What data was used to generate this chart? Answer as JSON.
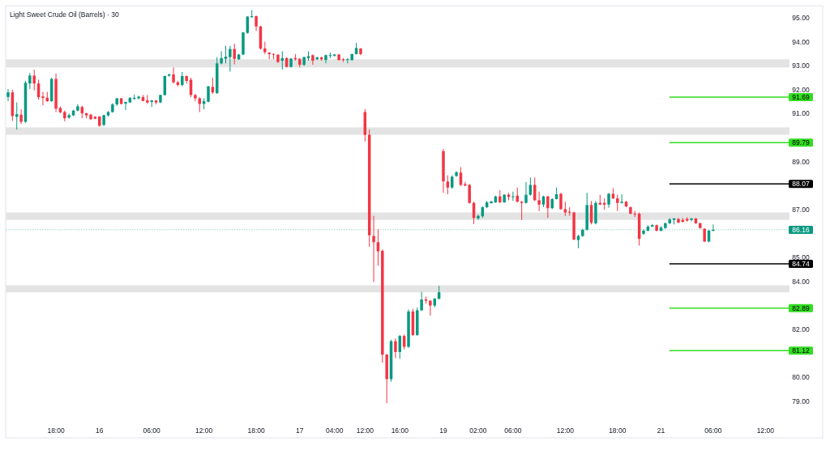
{
  "chart_data": {
    "type": "candlestick",
    "title": "Light Sweet Crude Oil (Barrels) · 30",
    "categories": [
      null,
      null,
      null,
      null,
      null,
      null,
      null,
      null,
      null,
      null,
      null,
      "18:00",
      null,
      null,
      null,
      null,
      null,
      null,
      null,
      null,
      null,
      "16",
      null,
      null,
      null,
      null,
      null,
      null,
      null,
      null,
      null,
      null,
      null,
      "06:00",
      null,
      null,
      null,
      null,
      null,
      null,
      null,
      null,
      null,
      null,
      null,
      "12:00",
      null,
      null,
      null,
      null,
      null,
      null,
      null,
      null,
      null,
      null,
      null,
      "18:00",
      null,
      null,
      null,
      null,
      null,
      null,
      null,
      null,
      null,
      "17",
      null,
      null,
      null,
      null,
      null,
      null,
      null,
      "04:00",
      null,
      null,
      null,
      null,
      null,
      null,
      "12:00",
      null,
      null,
      null,
      null,
      null,
      null,
      null,
      "16:00",
      null,
      null,
      null,
      null,
      null,
      null,
      null,
      null,
      null,
      "19",
      null,
      null,
      null,
      null,
      null,
      null,
      null,
      "02:00",
      null,
      null,
      null,
      null,
      null,
      null,
      null,
      "06:00",
      null,
      null,
      null,
      null,
      null,
      null,
      null,
      null,
      null,
      null,
      null,
      "12:00",
      null,
      null,
      null,
      null,
      null,
      null,
      null,
      null,
      null,
      null,
      null,
      "18:00",
      null,
      null,
      null,
      null,
      null,
      null,
      null,
      null,
      null,
      "21",
      null,
      null,
      null,
      null,
      null,
      null,
      null,
      null,
      null,
      null,
      null,
      "06:00",
      null,
      null,
      null,
      null,
      null,
      null,
      null,
      null,
      null,
      null,
      null,
      "12:00",
      null,
      null,
      null,
      null,
      null
    ],
    "ohlc": [
      [
        91.7,
        92.03,
        91.52,
        91.89
      ],
      [
        91.89,
        92.0,
        90.7,
        90.9
      ],
      [
        90.87,
        91.47,
        90.34,
        90.98
      ],
      [
        90.96,
        91.18,
        90.57,
        90.66
      ],
      [
        90.66,
        92.37,
        90.62,
        92.29
      ],
      [
        92.26,
        92.7,
        92.03,
        92.59
      ],
      [
        92.59,
        92.84,
        91.97,
        92.26
      ],
      [
        92.26,
        92.42,
        91.58,
        91.69
      ],
      [
        91.72,
        91.91,
        91.35,
        91.66
      ],
      [
        91.67,
        91.91,
        91.5,
        91.52
      ],
      [
        91.52,
        92.5,
        91.5,
        92.45
      ],
      [
        92.45,
        92.67,
        91.07,
        91.21
      ],
      [
        91.24,
        91.3,
        91.02,
        91.06
      ],
      [
        91.07,
        91.13,
        90.68,
        90.81
      ],
      [
        90.84,
        91.0,
        90.79,
        90.94
      ],
      [
        90.93,
        91.16,
        90.9,
        91.13
      ],
      [
        91.13,
        91.39,
        91.1,
        91.31
      ],
      [
        91.28,
        91.33,
        90.81,
        91.02
      ],
      [
        91.02,
        91.04,
        90.81,
        90.93
      ],
      [
        90.96,
        91.0,
        90.74,
        90.77
      ],
      [
        90.87,
        90.9,
        90.77,
        90.79
      ],
      [
        90.88,
        90.9,
        90.45,
        90.5
      ],
      [
        90.53,
        90.96,
        90.49,
        90.94
      ],
      [
        90.93,
        91.11,
        90.88,
        91.07
      ],
      [
        91.07,
        91.44,
        91.04,
        91.39
      ],
      [
        91.39,
        91.66,
        91.33,
        91.64
      ],
      [
        91.64,
        91.66,
        91.38,
        91.41
      ],
      [
        91.42,
        91.5,
        91.15,
        91.49
      ],
      [
        91.47,
        91.69,
        91.45,
        91.66
      ],
      [
        91.62,
        91.8,
        91.58,
        91.66
      ],
      [
        91.64,
        91.75,
        91.6,
        91.71
      ],
      [
        91.69,
        91.78,
        91.52,
        91.53
      ],
      [
        91.56,
        91.78,
        91.41,
        91.47
      ],
      [
        91.49,
        91.58,
        91.28,
        91.55
      ],
      [
        91.55,
        91.58,
        91.39,
        91.47
      ],
      [
        91.47,
        91.8,
        91.44,
        91.78
      ],
      [
        91.78,
        92.59,
        91.75,
        92.57
      ],
      [
        92.59,
        92.67,
        92.54,
        92.64
      ],
      [
        92.64,
        92.93,
        92.26,
        92.31
      ],
      [
        92.31,
        92.37,
        92.14,
        92.2
      ],
      [
        92.2,
        92.74,
        92.14,
        92.57
      ],
      [
        92.57,
        92.59,
        92.26,
        92.37
      ],
      [
        92.42,
        92.5,
        91.69,
        91.78
      ],
      [
        91.78,
        91.83,
        91.52,
        91.64
      ],
      [
        91.64,
        91.69,
        91.07,
        91.41
      ],
      [
        91.41,
        91.64,
        91.18,
        91.52
      ],
      [
        91.5,
        92.16,
        91.47,
        92.14
      ],
      [
        92.12,
        92.5,
        91.83,
        91.89
      ],
      [
        91.86,
        93.36,
        91.83,
        93.1
      ],
      [
        93.1,
        93.6,
        93.06,
        93.32
      ],
      [
        93.29,
        93.83,
        93.1,
        93.38
      ],
      [
        93.36,
        93.83,
        92.76,
        93.7
      ],
      [
        93.7,
        93.92,
        93.06,
        93.29
      ],
      [
        93.27,
        93.49,
        93.24,
        93.47
      ],
      [
        93.47,
        94.41,
        93.44,
        94.39
      ],
      [
        94.37,
        95.07,
        94.34,
        95.05
      ],
      [
        95.03,
        95.32,
        95.0,
        95.07
      ],
      [
        95.07,
        95.09,
        94.45,
        94.64
      ],
      [
        94.64,
        94.67,
        93.67,
        93.72
      ],
      [
        93.72,
        94.0,
        93.49,
        93.57
      ],
      [
        93.55,
        93.57,
        93.27,
        93.49
      ],
      [
        93.49,
        93.52,
        93.27,
        93.46
      ],
      [
        93.46,
        93.49,
        93.12,
        93.16
      ],
      [
        93.21,
        93.6,
        92.84,
        93.32
      ],
      [
        93.32,
        93.36,
        92.93,
        92.95
      ],
      [
        92.95,
        93.32,
        92.93,
        93.3
      ],
      [
        93.32,
        93.49,
        93.21,
        93.27
      ],
      [
        93.29,
        93.32,
        92.93,
        93.04
      ],
      [
        93.04,
        93.38,
        92.99,
        93.36
      ],
      [
        93.32,
        93.6,
        93.21,
        93.4
      ],
      [
        93.44,
        93.47,
        93.04,
        93.21
      ],
      [
        93.27,
        93.38,
        93.24,
        93.35
      ],
      [
        93.35,
        93.38,
        93.21,
        93.27
      ],
      [
        93.24,
        93.47,
        93.1,
        93.44
      ],
      [
        93.42,
        93.55,
        93.32,
        93.44
      ],
      [
        93.42,
        93.49,
        93.38,
        93.47
      ],
      [
        93.47,
        93.49,
        93.21,
        93.24
      ],
      [
        93.27,
        93.32,
        93.16,
        93.24
      ],
      [
        93.24,
        93.32,
        93.1,
        93.27
      ],
      [
        93.24,
        93.49,
        93.21,
        93.49
      ],
      [
        93.49,
        93.96,
        93.47,
        93.74
      ],
      [
        93.72,
        93.74,
        93.44,
        93.49
      ],
      [
        91.07,
        91.19,
        89.84,
        90.12
      ],
      [
        90.12,
        90.34,
        85.45,
        85.93
      ],
      [
        85.9,
        86.74,
        83.98,
        85.64
      ],
      [
        85.64,
        86.18,
        84.66,
        85.26
      ],
      [
        85.28,
        85.34,
        80.61,
        80.95
      ],
      [
        80.95,
        80.98,
        78.93,
        79.93
      ],
      [
        79.93,
        81.57,
        79.82,
        81.51
      ],
      [
        81.51,
        81.62,
        80.8,
        81.06
      ],
      [
        81.06,
        81.77,
        80.78,
        81.73
      ],
      [
        81.73,
        81.79,
        81.17,
        81.28
      ],
      [
        81.28,
        82.83,
        81.23,
        82.75
      ],
      [
        82.75,
        82.86,
        81.73,
        81.77
      ],
      [
        81.77,
        82.92,
        81.73,
        82.8
      ],
      [
        82.8,
        83.57,
        82.77,
        83.25
      ],
      [
        83.25,
        83.37,
        83.08,
        83.2
      ],
      [
        83.2,
        83.23,
        82.58,
        83.0
      ],
      [
        83.0,
        83.31,
        82.92,
        83.28
      ],
      [
        83.28,
        83.82,
        83.25,
        83.55
      ],
      [
        89.44,
        89.53,
        87.7,
        88.18
      ],
      [
        88.17,
        88.43,
        87.64,
        87.92
      ],
      [
        87.92,
        88.43,
        87.87,
        88.37
      ],
      [
        88.4,
        88.6,
        88.37,
        88.56
      ],
      [
        88.54,
        88.77,
        87.98,
        88.03
      ],
      [
        88.06,
        88.15,
        87.98,
        88.0
      ],
      [
        88.03,
        88.07,
        87.25,
        87.28
      ],
      [
        87.28,
        87.33,
        86.4,
        86.65
      ],
      [
        86.63,
        86.8,
        86.57,
        86.74
      ],
      [
        86.72,
        87.13,
        86.65,
        87.1
      ],
      [
        87.1,
        87.36,
        87.06,
        87.3
      ],
      [
        87.27,
        87.36,
        87.25,
        87.34
      ],
      [
        87.3,
        87.58,
        87.28,
        87.55
      ],
      [
        87.55,
        87.81,
        87.28,
        87.3
      ],
      [
        87.3,
        87.64,
        87.28,
        87.62
      ],
      [
        87.62,
        87.7,
        87.39,
        87.53
      ],
      [
        87.53,
        87.75,
        87.36,
        87.55
      ],
      [
        87.58,
        87.92,
        87.3,
        87.33
      ],
      [
        87.33,
        87.36,
        86.57,
        87.28
      ],
      [
        87.28,
        88.15,
        87.25,
        87.62
      ],
      [
        87.62,
        88.34,
        87.58,
        88.03
      ],
      [
        88.03,
        88.34,
        87.36,
        87.39
      ],
      [
        87.39,
        87.75,
        86.94,
        87.21
      ],
      [
        87.21,
        87.58,
        87.1,
        87.55
      ],
      [
        87.55,
        87.58,
        86.65,
        87.06
      ],
      [
        87.06,
        87.47,
        87.02,
        87.44
      ],
      [
        87.44,
        87.92,
        87.42,
        87.64
      ],
      [
        87.66,
        87.7,
        86.99,
        87.02
      ],
      [
        87.02,
        87.33,
        86.74,
        86.88
      ],
      [
        86.91,
        87.1,
        86.74,
        86.88
      ],
      [
        86.88,
        86.91,
        85.73,
        85.75
      ],
      [
        85.73,
        85.95,
        85.39,
        85.9
      ],
      [
        85.9,
        86.2,
        85.86,
        86.16
      ],
      [
        86.16,
        87.7,
        86.12,
        87.19
      ],
      [
        87.19,
        87.36,
        86.38,
        86.45
      ],
      [
        86.43,
        87.36,
        86.38,
        87.28
      ],
      [
        87.28,
        87.62,
        87.19,
        87.21
      ],
      [
        87.28,
        87.47,
        86.99,
        87.21
      ],
      [
        87.21,
        87.7,
        87.08,
        87.66
      ],
      [
        87.66,
        87.89,
        87.44,
        87.47
      ],
      [
        87.47,
        87.62,
        86.94,
        87.28
      ],
      [
        87.28,
        87.64,
        87.25,
        87.33
      ],
      [
        87.33,
        87.36,
        87.1,
        87.13
      ],
      [
        87.1,
        87.13,
        86.8,
        86.83
      ],
      [
        86.83,
        86.94,
        86.69,
        86.8
      ],
      [
        86.83,
        86.88,
        85.5,
        85.78
      ],
      [
        85.99,
        86.18,
        85.95,
        86.12
      ],
      [
        86.12,
        86.35,
        86.09,
        86.29
      ],
      [
        86.29,
        86.4,
        86.27,
        86.35
      ],
      [
        86.35,
        86.38,
        86.09,
        86.12
      ],
      [
        86.12,
        86.31,
        86.09,
        86.25
      ],
      [
        86.23,
        86.46,
        86.2,
        86.43
      ],
      [
        86.43,
        86.65,
        86.4,
        86.59
      ],
      [
        86.57,
        86.65,
        86.38,
        86.63
      ],
      [
        86.61,
        86.65,
        86.43,
        86.46
      ],
      [
        86.57,
        86.65,
        86.46,
        86.49
      ],
      [
        86.61,
        86.68,
        86.49,
        86.54
      ],
      [
        86.57,
        86.65,
        86.51,
        86.63
      ],
      [
        86.63,
        86.65,
        86.4,
        86.43
      ],
      [
        86.43,
        86.46,
        86.2,
        86.23
      ],
      [
        86.2,
        86.23,
        85.64,
        85.67
      ],
      [
        85.67,
        86.16,
        85.64,
        86.12
      ],
      [
        86.12,
        86.38,
        86.09,
        86.16
      ],
      null,
      null,
      null,
      null,
      null,
      null,
      null,
      null,
      null,
      null,
      null,
      null,
      null,
      null,
      null,
      null,
      null
    ],
    "colors": [
      "#089981",
      "#f23645",
      "#089981",
      "#f23645",
      "#089981",
      "#089981",
      "#f23645",
      "#f23645",
      "#f23645",
      "#f23645",
      "#089981",
      "#f23645",
      "#f23645",
      "#f23645",
      "#089981",
      "#089981",
      "#089981",
      "#f23645",
      "#f23645",
      "#f23645",
      "#f23645",
      "#f23645",
      "#089981",
      "#089981",
      "#089981",
      "#089981",
      "#f23645",
      "#089981",
      "#089981",
      "#089981",
      "#089981",
      "#f23645",
      "#f23645",
      "#089981",
      "#f23645",
      "#089981",
      "#089981",
      "#089981",
      "#f23645",
      "#f23645",
      "#089981",
      "#f23645",
      "#f23645",
      "#f23645",
      "#f23645",
      "#089981",
      "#089981",
      "#f23645",
      "#089981",
      "#089981",
      "#089981",
      "#089981",
      "#f23645",
      "#089981",
      "#089981",
      "#089981",
      "#089981",
      "#f23645",
      "#f23645",
      "#f23645",
      "#f23645",
      "#f23645",
      "#f23645",
      "#089981",
      "#f23645",
      "#089981",
      "#f23645",
      "#f23645",
      "#089981",
      "#089981",
      "#f23645",
      "#089981",
      "#f23645",
      "#089981",
      "#089981",
      "#089981",
      "#f23645",
      "#f23645",
      "#089981",
      "#089981",
      "#089981",
      "#f23645",
      "#f23645",
      "#f23645",
      "#f23645",
      "#f23645",
      "#f23645",
      "#f23645",
      "#089981",
      "#f23645",
      "#089981",
      "#f23645",
      "#089981",
      "#f23645",
      "#089981",
      "#089981",
      "#f23645",
      "#f23645",
      "#089981",
      "#089981",
      "#f23645",
      "#f23645",
      "#089981",
      "#089981",
      "#f23645",
      "#f23645",
      "#f23645",
      "#f23645",
      "#089981",
      "#089981",
      "#089981",
      "#089981",
      "#089981",
      "#f23645",
      "#089981",
      "#f23645",
      "#089981",
      "#f23645",
      "#f23645",
      "#089981",
      "#089981",
      "#f23645",
      "#f23645",
      "#089981",
      "#f23645",
      "#089981",
      "#089981",
      "#f23645",
      "#f23645",
      "#f23645",
      "#f23645",
      "#089981",
      "#089981",
      "#089981",
      "#f23645",
      "#089981",
      "#f23645",
      "#f23645",
      "#089981",
      "#f23645",
      "#f23645",
      "#089981",
      "#f23645",
      "#f23645",
      "#f23645",
      "#f23645",
      "#089981",
      "#089981",
      "#089981",
      "#f23645",
      "#089981",
      "#089981",
      "#089981",
      "#089981",
      "#f23645",
      "#f23645",
      "#f23645",
      "#089981",
      "#f23645",
      "#f23645",
      "#f23645",
      "#089981",
      "#089981",
      null,
      null,
      null,
      null,
      null,
      null,
      null,
      null,
      null,
      null,
      null,
      null,
      null,
      null,
      null,
      null,
      null
    ],
    "ylim": [
      77.48,
      95.5
    ],
    "yticks": [
      {
        "value": 79,
        "label": "79.00"
      },
      {
        "value": 80,
        "label": "80.00"
      },
      {
        "value": 82,
        "label": "82.00"
      },
      {
        "value": 84,
        "label": "84.00"
      },
      {
        "value": 85,
        "label": "85.00"
      },
      {
        "value": 87,
        "label": "87.00"
      },
      {
        "value": 89,
        "label": "89.00"
      },
      {
        "value": 91,
        "label": "91.00"
      },
      {
        "value": 92,
        "label": "92.00"
      },
      {
        "value": 93,
        "label": "93.00"
      },
      {
        "value": 94,
        "label": "94.00"
      },
      {
        "value": 95,
        "label": "95.00"
      }
    ],
    "bands": [
      {
        "axis": "y",
        "from": 92.93,
        "to": 93.27,
        "color": "#e3e3e3"
      },
      {
        "axis": "y",
        "from": 90.12,
        "to": 90.43,
        "color": "#e3e3e3"
      },
      {
        "axis": "y",
        "from": 86.57,
        "to": 86.88,
        "color": "#e3e3e3"
      },
      {
        "axis": "y",
        "from": 83.55,
        "to": 83.84,
        "color": "#e3e3e3"
      }
    ],
    "ref_lines": [
      {
        "axis": "y",
        "value": 91.69,
        "label": "91.69",
        "color": "#33dd22",
        "line_style": "solid"
      },
      {
        "axis": "y",
        "value": 89.79,
        "label": "89.79",
        "color": "#33dd22",
        "line_style": "solid"
      },
      {
        "axis": "y",
        "value": 88.07,
        "label": "88.07",
        "color": "#000000",
        "line_style": "solid"
      },
      {
        "axis": "y",
        "value": 86.16,
        "label": "86.16",
        "color": "#089981",
        "line_style": "dotted"
      },
      {
        "axis": "y",
        "value": 84.74,
        "label": "84.74",
        "color": "#000000",
        "line_style": "solid"
      },
      {
        "axis": "y",
        "value": 82.89,
        "label": "82.89",
        "color": "#33dd22",
        "line_style": "solid"
      },
      {
        "axis": "y",
        "value": 81.12,
        "label": "81.12",
        "color": "#33dd22",
        "line_style": "solid"
      }
    ]
  }
}
